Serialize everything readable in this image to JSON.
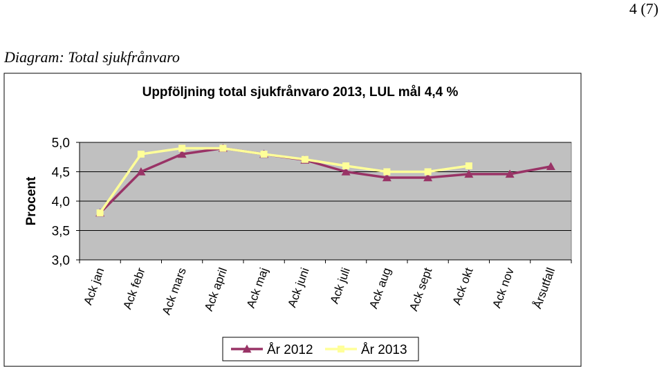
{
  "page": {
    "number": "4 (7)"
  },
  "section": {
    "title": "Diagram: Total sjukfrånvaro"
  },
  "chart_data": {
    "type": "line",
    "title": "Uppföljning total sjukfrånvaro 2013, LUL mål 4,4 %",
    "ylabel": "Procent",
    "xlabel": "",
    "categories": [
      "Ack jan",
      "Ack febr",
      "Ack mars",
      "Ack april",
      "Ack maj",
      "Ack juni",
      "Ack juli",
      "Ack aug",
      "Ack sept",
      "Ack okt",
      "Ack nov",
      "Årsutfall"
    ],
    "ylim": [
      3.0,
      5.0
    ],
    "yticks": [
      "3,0",
      "3,5",
      "4,0",
      "4,5",
      "5,0"
    ],
    "grid": true,
    "legend_position": "bottom",
    "series": [
      {
        "name": "År 2012",
        "color": "#993366",
        "marker": "triangle",
        "values": [
          3.8,
          4.5,
          4.8,
          4.9,
          4.8,
          4.7,
          4.5,
          4.4,
          4.4,
          4.46,
          4.46,
          4.59
        ]
      },
      {
        "name": "År 2013",
        "color": "#ffff99",
        "marker": "square",
        "values": [
          3.8,
          4.8,
          4.9,
          4.9,
          4.8,
          4.71,
          4.6,
          4.5,
          4.5,
          4.6,
          null,
          null
        ]
      }
    ],
    "colors": {
      "plot_background": "#c0c0c0",
      "gridline": "#000000"
    }
  }
}
